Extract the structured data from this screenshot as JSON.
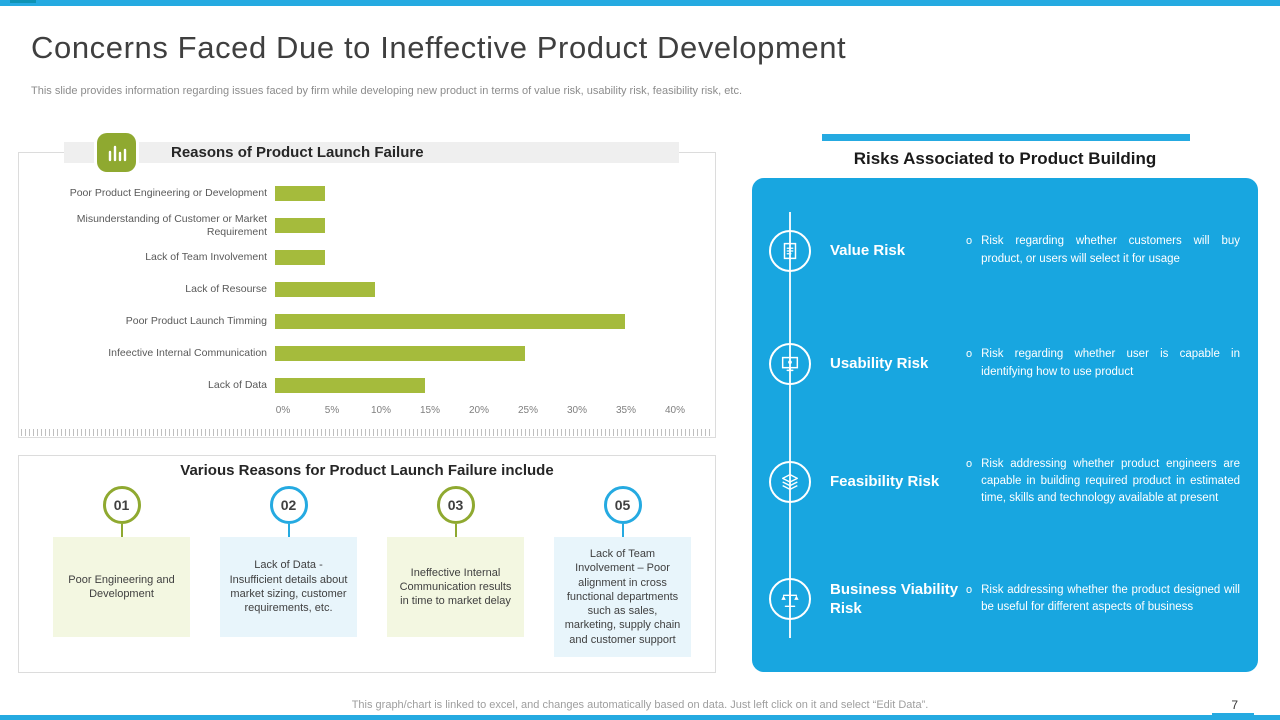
{
  "slide": {
    "title": "Concerns Faced Due to Ineffective Product Development",
    "subtitle": "This slide provides information regarding issues faced by firm while developing new product in terms of value risk, usability risk, feasibility risk, etc.",
    "footer": "This graph/chart is linked to excel, and changes automatically based on data. Just left click on it and select “Edit Data”.",
    "page_number": "7"
  },
  "colors": {
    "cyan": "#25aae1",
    "panel_blue": "#18a6e0",
    "olive": "#8fa930",
    "bar_green": "#a5bb3c",
    "light_green": "#f3f7e1",
    "light_blue": "#e8f5fb"
  },
  "chart_panel": {
    "title": "Reasons of Product Launch Failure",
    "icon": "bar-chart-icon"
  },
  "chart_data": {
    "type": "bar",
    "orientation": "horizontal",
    "title": "Reasons of Product Launch Failure",
    "categories": [
      "Poor Product Engineering or Development",
      "Misunderstanding of Customer or Market Requirement",
      "Lack of Team Involvement",
      "Lack of Resourse",
      "Poor Product Launch Timming",
      "Infeective Internal Communication",
      "Lack of Data"
    ],
    "values": [
      5,
      5,
      5,
      10,
      35,
      25,
      15
    ],
    "x_ticks": [
      "0%",
      "5%",
      "10%",
      "15%",
      "20%",
      "25%",
      "30%",
      "35%",
      "40%"
    ],
    "xlim": [
      0,
      40
    ],
    "bar_color": "#a5bb3c",
    "grid": false,
    "legend": false
  },
  "reasons_panel": {
    "title": "Various Reasons for Product Launch Failure include",
    "items": [
      {
        "number": "01",
        "accent": "green",
        "text": "Poor Engineering and Development"
      },
      {
        "number": "02",
        "accent": "blue",
        "text": "Lack of Data - Insufficient details about market sizing, customer requirements, etc."
      },
      {
        "number": "03",
        "accent": "green",
        "text": "Ineffective Internal Communication results in time to market delay"
      },
      {
        "number": "05",
        "accent": "blue",
        "text": "Lack of Team Involvement – Poor alignment in cross functional departments such as sales, marketing, supply chain and customer support"
      }
    ]
  },
  "risks_panel": {
    "title": "Risks Associated to Product Building",
    "items": [
      {
        "label": "Value Risk",
        "icon": "value-risk-icon",
        "bullet": "o",
        "description": "Risk regarding whether customers will buy product, or users will select it for usage"
      },
      {
        "label": "Usability Risk",
        "icon": "usability-risk-icon",
        "bullet": "o",
        "description": "Risk regarding whether user is capable in identifying how to use product"
      },
      {
        "label": "Feasibility Risk",
        "icon": "feasibility-risk-icon",
        "bullet": "o",
        "description": "Risk addressing whether product engineers are capable in building required product in estimated time, skills and technology available at present"
      },
      {
        "label": "Business Viability Risk",
        "icon": "business-viability-risk-icon",
        "bullet": "o",
        "description": "Risk addressing whether the product designed will be useful for different aspects of business"
      }
    ]
  }
}
